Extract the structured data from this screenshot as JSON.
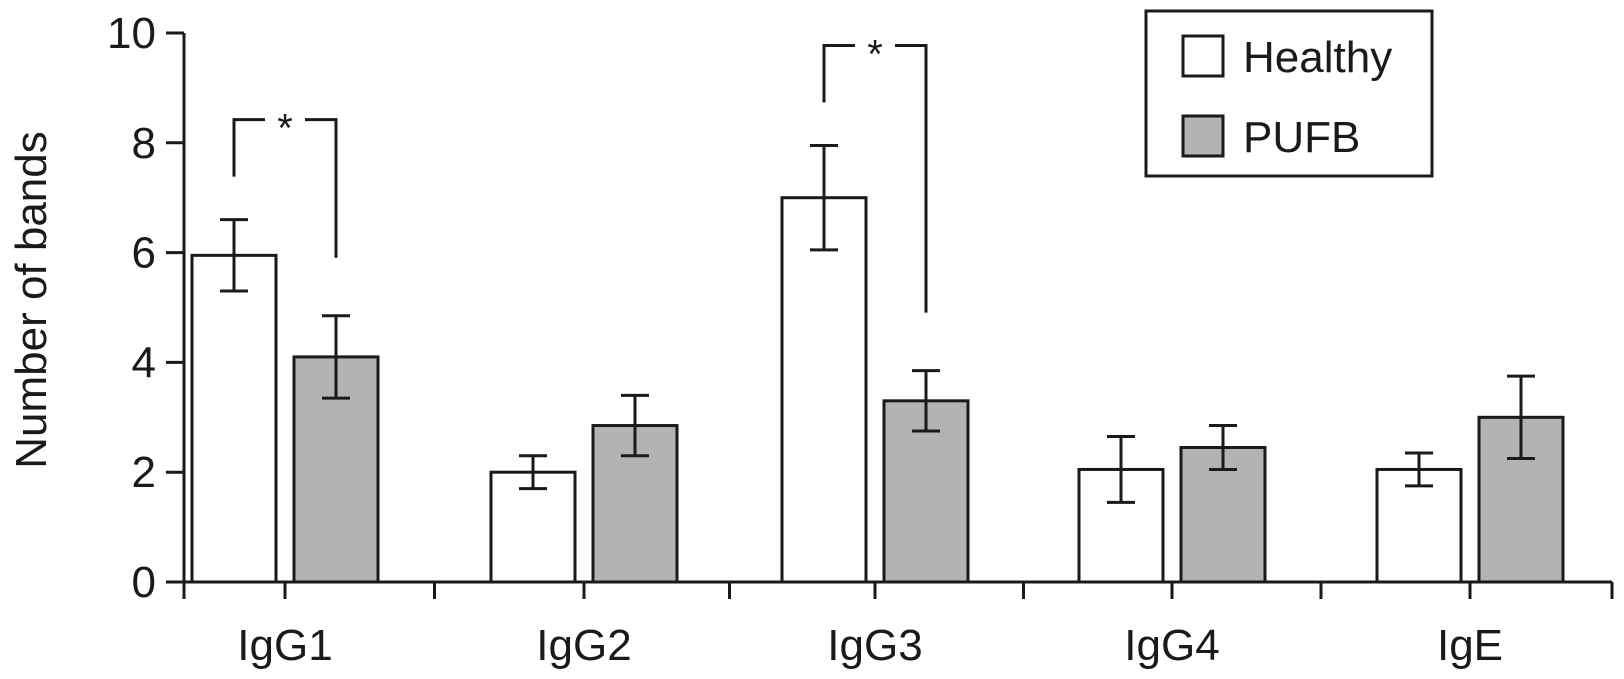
{
  "chart_data": {
    "type": "bar",
    "ylabel": "Number of bands",
    "xlabel": "",
    "ylim": [
      0,
      10
    ],
    "yticks": [
      "0",
      "2",
      "4",
      "6",
      "8",
      "10"
    ],
    "categories": [
      "IgG1",
      "IgG2",
      "IgG3",
      "IgG4",
      "IgE"
    ],
    "series": [
      {
        "name": "Healthy",
        "color": "#ffffff",
        "values": [
          5.95,
          2.0,
          7.0,
          2.05,
          2.05
        ],
        "error": [
          0.65,
          0.3,
          0.95,
          0.6,
          0.3
        ]
      },
      {
        "name": "PUFB",
        "color": "#b3b3b3",
        "values": [
          4.1,
          2.85,
          3.3,
          2.45,
          3.0
        ],
        "error": [
          0.75,
          0.55,
          0.55,
          0.4,
          0.75
        ]
      }
    ],
    "significance": [
      {
        "category": "IgG1",
        "label": "*"
      },
      {
        "category": "IgG3",
        "label": "*"
      }
    ],
    "legend": {
      "position": "top-right"
    },
    "grid": false
  }
}
